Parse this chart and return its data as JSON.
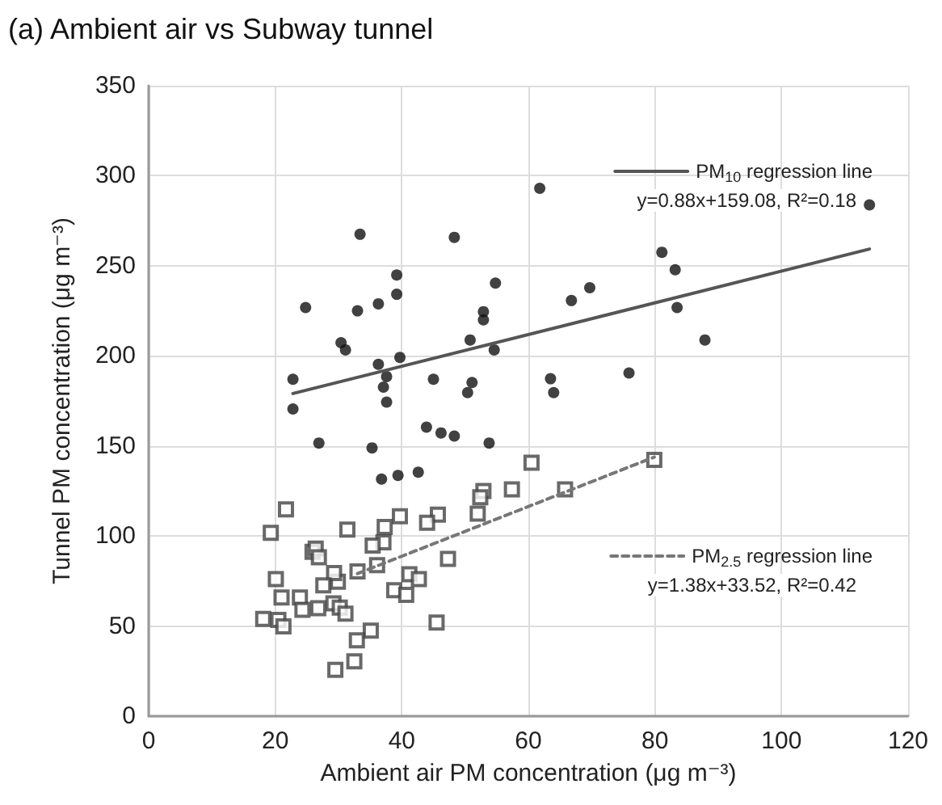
{
  "chart_data": {
    "type": "scatter",
    "title": "(a) Ambient air vs Subway tunnel",
    "xlabel": "Ambient air PM concentration (μg m⁻³)",
    "ylabel": "Tunnel PM concentration (μg m⁻³)",
    "xlim": [
      0,
      120
    ],
    "xticks": [
      0,
      20,
      40,
      60,
      80,
      100,
      120
    ],
    "ylim": [
      0,
      350
    ],
    "yticks": [
      0,
      50,
      100,
      150,
      200,
      250,
      300,
      350
    ],
    "grid": true,
    "legend": "right",
    "annotations": [
      "y=0.88x+159.08, R²=0.18",
      "y=1.38x+33.52, R²=0.42"
    ],
    "series": [
      {
        "marker": "circle",
        "color": "#111111",
        "x": [
          61.8,
          33.4,
          48.3,
          39.2,
          39.2,
          54.8,
          24.8,
          33.0,
          36.3,
          52.9,
          52.9,
          30.4,
          31.1,
          50.8,
          54.6,
          39.7,
          36.3,
          37.6,
          37.1,
          37.6,
          22.8,
          22.8,
          45.0,
          51.1,
          50.4,
          63.5,
          64.0,
          43.9,
          46.2,
          48.3,
          53.8,
          26.9,
          35.3,
          36.8,
          39.4,
          42.6,
          113.9,
          81.1,
          83.2,
          83.5,
          87.9,
          66.8,
          69.7,
          75.9
        ],
        "values": [
          293,
          267.5,
          265.8,
          244.9,
          234.2,
          240.4,
          226.8,
          225,
          228.9,
          224.5,
          220,
          207.3,
          203.3,
          208.8,
          203.3,
          199.1,
          195.3,
          188.5,
          182.6,
          174.3,
          187,
          170.5,
          187,
          185.2,
          179.6,
          187.3,
          179.6,
          160.4,
          157.2,
          155.5,
          151.6,
          151.6,
          148.9,
          131.6,
          133.6,
          135.4,
          283.8,
          257.5,
          247.8,
          226.8,
          208.8,
          230.7,
          237.8,
          190.5
        ]
      },
      {
        "marker": "square",
        "color": "#444444",
        "x": [
          60.5,
          57.4,
          52.9,
          52.4,
          52.0,
          45.7,
          44.0,
          39.7,
          37.3,
          37.1,
          35.4,
          31.4,
          21.7,
          19.3,
          25.9,
          26.4,
          26.9,
          36.1,
          47.3,
          41.2,
          42.7,
          38.8,
          40.7,
          33.0,
          29.9,
          29.3,
          27.6,
          20.1,
          21.0,
          23.9,
          24.3,
          26.8,
          29.2,
          30.2,
          31.1,
          18.1,
          20.5,
          21.3,
          45.5,
          35.1,
          32.9,
          32.5,
          29.5,
          65.8,
          79.9
        ],
        "values": [
          140.7,
          125.9,
          125,
          121.5,
          112.4,
          111.8,
          107.3,
          110.9,
          105,
          96.5,
          94.7,
          103.5,
          114.8,
          101.8,
          91.2,
          93,
          88.2,
          83.8,
          87.3,
          78.8,
          76.1,
          69.9,
          67.3,
          80.3,
          74.6,
          79.4,
          72.6,
          76.1,
          65.8,
          65.8,
          59,
          59.9,
          62.6,
          60.2,
          56.9,
          54,
          53.4,
          49.8,
          51.9,
          47.5,
          42.1,
          30.4,
          25.7,
          125.9,
          142.2
        ]
      },
      {
        "type": "line",
        "name": "PM$_{10}$ regression line",
        "marker": "none",
        "line_style": "solid",
        "color": "#555555",
        "x": [
          22.8,
          113.9
        ],
        "values": [
          179.1,
          259.3
        ]
      },
      {
        "type": "line",
        "name": "PM$_{2.5}$ regression line",
        "marker": "none",
        "line_style": "dashed",
        "color": "#777777",
        "x": [
          33,
          79.9
        ],
        "values": [
          79.1,
          143.8
        ]
      }
    ]
  }
}
